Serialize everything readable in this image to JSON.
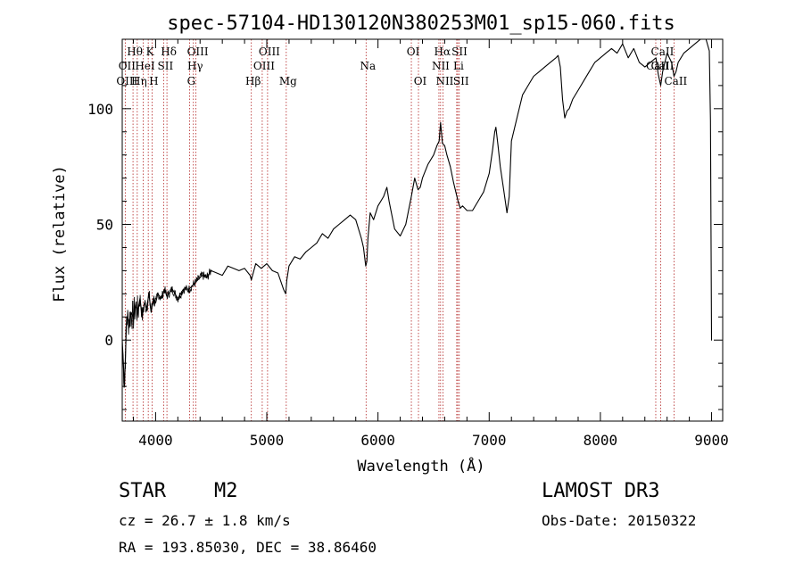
{
  "chart_data": {
    "type": "line",
    "title": "spec-57104-HD130120N380253M01_sp15-060.fits",
    "xlabel": "Wavelength (Å)",
    "ylabel": "Flux (relative)",
    "xlim": [
      3700,
      9100
    ],
    "ylim": [
      -35,
      130
    ],
    "xticks": [
      4000,
      5000,
      6000,
      7000,
      8000,
      9000
    ],
    "yticks": [
      0,
      50,
      100
    ],
    "xtick_labels": [
      "4000",
      "5000",
      "6000",
      "7000",
      "8000",
      "9000"
    ],
    "ytick_labels": [
      "0",
      "50",
      "100"
    ],
    "grid": false,
    "series": [
      {
        "name": "spectrum",
        "x": [
          3700,
          3720,
          3740,
          3760,
          3780,
          3800,
          3820,
          3840,
          3860,
          3880,
          3900,
          3920,
          3940,
          3960,
          3980,
          4000,
          4020,
          4050,
          4080,
          4100,
          4150,
          4200,
          4250,
          4300,
          4340,
          4380,
          4420,
          4460,
          4500,
          4550,
          4600,
          4650,
          4700,
          4750,
          4800,
          4850,
          4861,
          4900,
          4950,
          5000,
          5050,
          5100,
          5150,
          5170,
          5180,
          5200,
          5250,
          5300,
          5350,
          5400,
          5450,
          5500,
          5550,
          5600,
          5650,
          5700,
          5750,
          5800,
          5850,
          5870,
          5890,
          5900,
          5910,
          5930,
          5960,
          6000,
          6050,
          6080,
          6100,
          6150,
          6200,
          6250,
          6300,
          6330,
          6360,
          6380,
          6400,
          6450,
          6500,
          6530,
          6550,
          6563,
          6580,
          6600,
          6620,
          6650,
          6680,
          6700,
          6720,
          6740,
          6760,
          6800,
          6850,
          6900,
          6950,
          7000,
          7030,
          7050,
          7060,
          7080,
          7100,
          7130,
          7160,
          7180,
          7200,
          7250,
          7300,
          7350,
          7400,
          7450,
          7500,
          7550,
          7600,
          7620,
          7640,
          7660,
          7680,
          7700,
          7720,
          7750,
          7800,
          7850,
          7900,
          7950,
          8000,
          8050,
          8100,
          8150,
          8200,
          8250,
          8300,
          8350,
          8400,
          8450,
          8500,
          8520,
          8542,
          8560,
          8600,
          8640,
          8662,
          8680,
          8700,
          8750,
          8800,
          8850,
          8900,
          8950,
          8980,
          8990,
          9000,
          9010
        ],
        "y": [
          0,
          -20,
          10,
          8,
          12,
          10,
          15,
          12,
          18,
          10,
          16,
          14,
          20,
          12,
          18,
          16,
          20,
          18,
          22,
          19,
          22,
          18,
          22,
          22,
          24,
          26,
          28,
          27,
          30,
          29,
          28,
          32,
          31,
          30,
          31,
          28,
          26,
          33,
          31,
          33,
          30,
          29,
          22,
          20,
          26,
          32,
          36,
          35,
          38,
          40,
          42,
          46,
          44,
          48,
          50,
          52,
          54,
          52,
          44,
          40,
          32,
          34,
          44,
          55,
          52,
          58,
          62,
          66,
          60,
          48,
          45,
          50,
          62,
          70,
          65,
          66,
          70,
          76,
          80,
          84,
          86,
          94,
          85,
          84,
          80,
          75,
          68,
          64,
          60,
          57,
          58,
          56,
          56,
          60,
          64,
          72,
          82,
          90,
          92,
          84,
          75,
          65,
          55,
          62,
          86,
          96,
          106,
          110,
          114,
          116,
          118,
          120,
          122,
          123,
          118,
          104,
          96,
          99,
          100,
          104,
          108,
          112,
          116,
          120,
          122,
          124,
          126,
          124,
          128,
          122,
          126,
          120,
          118,
          120,
          122,
          115,
          110,
          116,
          124,
          120,
          114,
          116,
          120,
          124,
          126,
          128,
          130,
          130,
          125,
          95,
          0,
          0
        ]
      }
    ],
    "line_labels": [
      {
        "text": "Hθ",
        "row": 1,
        "wl": 3797
      },
      {
        "text": "K",
        "row": 1,
        "wl": 3934
      },
      {
        "text": "Hδ",
        "row": 1,
        "wl": 4102
      },
      {
        "text": "OIII",
        "row": 1,
        "wl": 4363
      },
      {
        "text": "OIII",
        "row": 1,
        "wl": 5007
      },
      {
        "text": "OI",
        "row": 1,
        "wl": 6300
      },
      {
        "text": "Hα",
        "row": 1,
        "wl": 6563
      },
      {
        "text": "SII",
        "row": 1,
        "wl": 6717
      },
      {
        "text": "CaII",
        "row": 1,
        "wl": 8542
      },
      {
        "text": "OII",
        "row": 2,
        "wl": 3727
      },
      {
        "text": "HeI",
        "row": 2,
        "wl": 3889
      },
      {
        "text": "SII",
        "row": 2,
        "wl": 4072
      },
      {
        "text": "Hγ",
        "row": 2,
        "wl": 4340
      },
      {
        "text": "OIII",
        "row": 2,
        "wl": 4959
      },
      {
        "text": "Na",
        "row": 2,
        "wl": 5893
      },
      {
        "text": "NII",
        "row": 2,
        "wl": 6548
      },
      {
        "text": "Li",
        "row": 2,
        "wl": 6708
      },
      {
        "text": "CaII",
        "row": 2,
        "wl": 8498
      },
      {
        "text": "CaII",
        "row": 2,
        "wl": 8542
      },
      {
        "text": "OIII",
        "row": 3,
        "wl": 3727
      },
      {
        "text": "Hη",
        "row": 3,
        "wl": 3835
      },
      {
        "text": "H",
        "row": 3,
        "wl": 3968
      },
      {
        "text": "G",
        "row": 3,
        "wl": 4305
      },
      {
        "text": "Hβ",
        "row": 3,
        "wl": 4861
      },
      {
        "text": "Mg",
        "row": 3,
        "wl": 5175
      },
      {
        "text": "OI",
        "row": 3,
        "wl": 6364
      },
      {
        "text": "NII",
        "row": 3,
        "wl": 6584
      },
      {
        "text": "SII",
        "row": 3,
        "wl": 6731
      },
      {
        "text": "CaII",
        "row": 3,
        "wl": 8662
      }
    ],
    "line_markers": [
      3727,
      3797,
      3835,
      3889,
      3934,
      3968,
      4072,
      4102,
      4305,
      4340,
      4363,
      4861,
      4959,
      5007,
      5175,
      5893,
      6300,
      6364,
      6548,
      6563,
      6584,
      6708,
      6717,
      6731,
      8498,
      8542,
      8662
    ]
  },
  "info": {
    "object_class": "STAR",
    "subclass": "M2",
    "survey": "LAMOST DR3",
    "cz": "cz = 26.7 ± 1.8 km/s",
    "obs_date": "Obs-Date: 20150322",
    "radec": "RA = 193.85030, DEC =  38.86460"
  },
  "colors": {
    "line": "#000000",
    "marker": "#b22222",
    "background": "#ffffff"
  }
}
